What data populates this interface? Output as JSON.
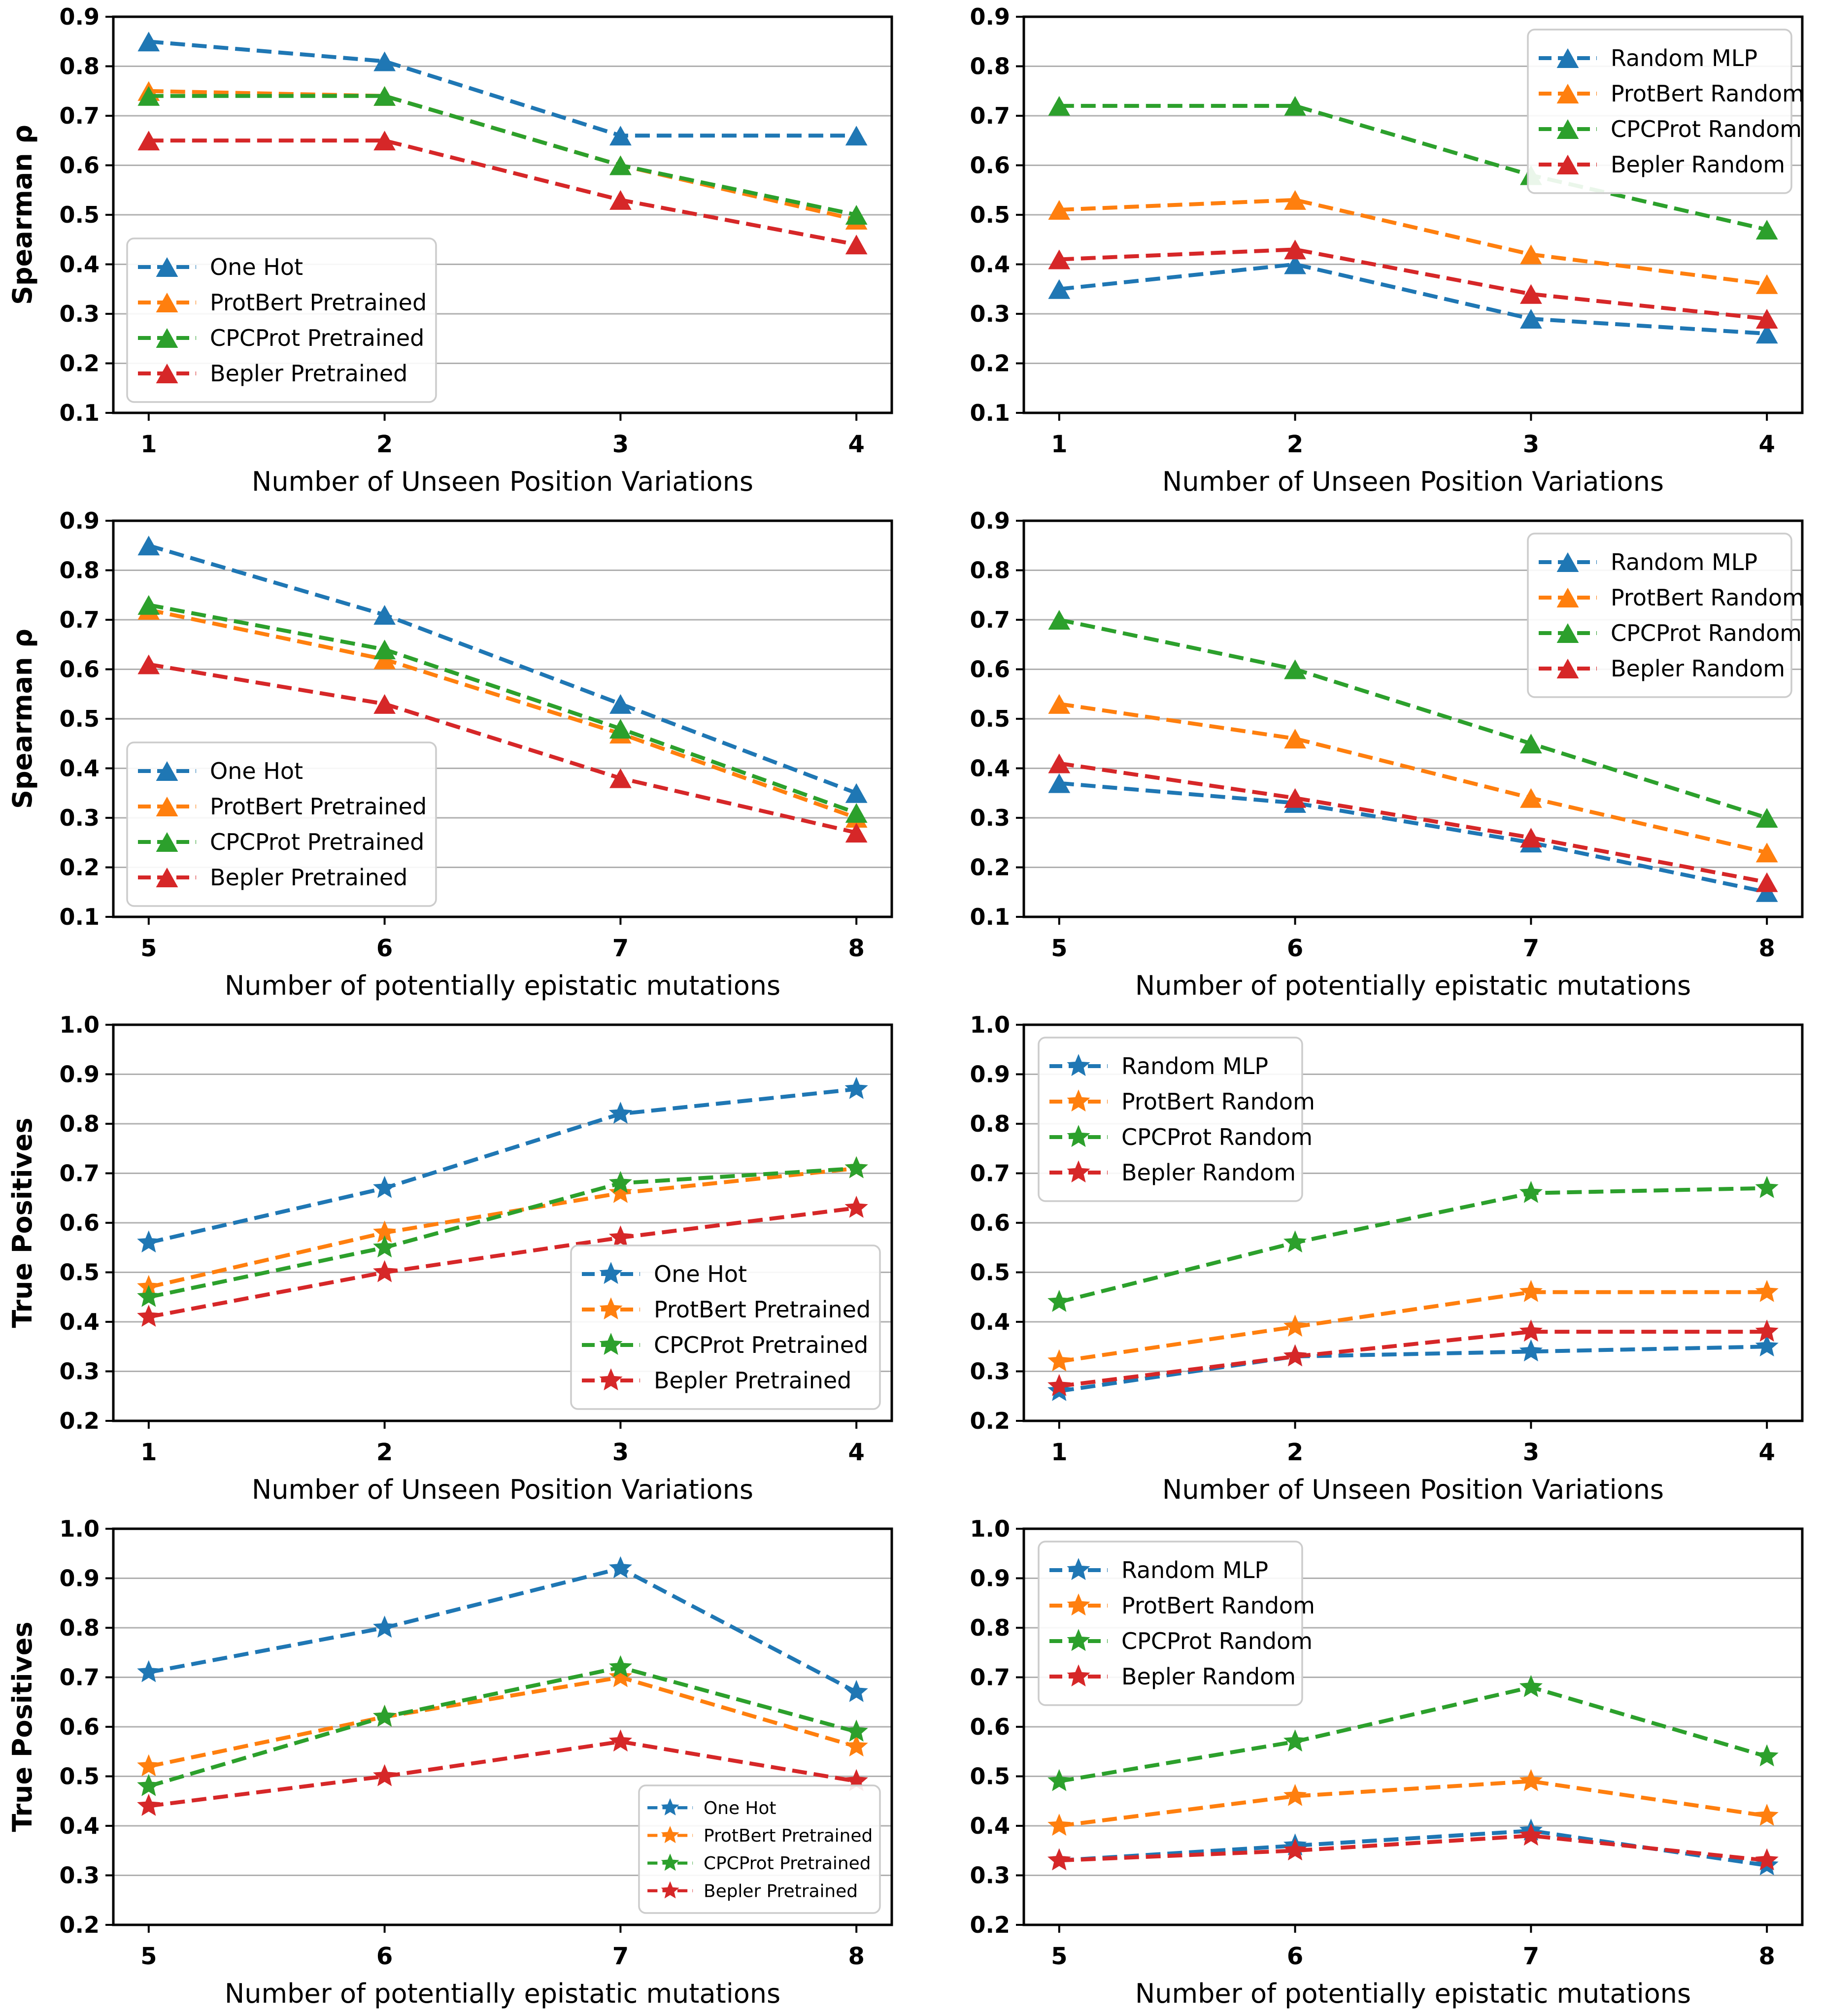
{
  "figure": {
    "layout": "4x2 grid of line charts",
    "colors": {
      "blue": "#1f77b4",
      "orange": "#ff7f0e",
      "green": "#2ca02c",
      "red": "#d62728",
      "grid": "#b0b0b0",
      "spine": "#000000",
      "legend_border": "#cccccc"
    }
  },
  "chart_data": [
    {
      "id": "spearman-unseen-pretrained",
      "type": "line",
      "xlabel": "Number of Unseen Position Variations",
      "ylabel": "Spearman ρ",
      "x": [
        1,
        2,
        3,
        4
      ],
      "ylim": [
        0.1,
        0.9
      ],
      "yticks": [
        0.1,
        0.2,
        0.3,
        0.4,
        0.5,
        0.6,
        0.7,
        0.8,
        0.9
      ],
      "grid": "horizontal",
      "marker": "triangle",
      "legend": {
        "position": "lower-left",
        "scale": 1.0
      },
      "series": [
        {
          "name": "One Hot",
          "color": "#1f77b4",
          "values": [
            0.85,
            0.81,
            0.66,
            0.66
          ]
        },
        {
          "name": "ProtBert Pretrained",
          "color": "#ff7f0e",
          "values": [
            0.75,
            0.74,
            0.6,
            0.49
          ]
        },
        {
          "name": "CPCProt Pretrained",
          "color": "#2ca02c",
          "values": [
            0.74,
            0.74,
            0.6,
            0.5
          ]
        },
        {
          "name": "Bepler Pretrained",
          "color": "#d62728",
          "values": [
            0.65,
            0.65,
            0.53,
            0.44
          ]
        }
      ]
    },
    {
      "id": "spearman-unseen-random",
      "type": "line",
      "xlabel": "Number of Unseen Position Variations",
      "ylabel": "",
      "x": [
        1,
        2,
        3,
        4
      ],
      "ylim": [
        0.1,
        0.9
      ],
      "yticks": [
        0.1,
        0.2,
        0.3,
        0.4,
        0.5,
        0.6,
        0.7,
        0.8,
        0.9
      ],
      "grid": "horizontal",
      "marker": "triangle",
      "legend": {
        "position": "upper-right",
        "scale": 1.0
      },
      "series": [
        {
          "name": "Random MLP",
          "color": "#1f77b4",
          "values": [
            0.35,
            0.4,
            0.29,
            0.26
          ]
        },
        {
          "name": "ProtBert Random",
          "color": "#ff7f0e",
          "values": [
            0.51,
            0.53,
            0.42,
            0.36
          ]
        },
        {
          "name": "CPCProt Random",
          "color": "#2ca02c",
          "values": [
            0.72,
            0.72,
            0.58,
            0.47
          ]
        },
        {
          "name": "Bepler Random",
          "color": "#d62728",
          "values": [
            0.41,
            0.43,
            0.34,
            0.29
          ]
        }
      ]
    },
    {
      "id": "spearman-epistatic-pretrained",
      "type": "line",
      "xlabel": "Number of potentially epistatic mutations",
      "ylabel": "Spearman ρ",
      "x": [
        5,
        6,
        7,
        8
      ],
      "ylim": [
        0.1,
        0.9
      ],
      "yticks": [
        0.1,
        0.2,
        0.3,
        0.4,
        0.5,
        0.6,
        0.7,
        0.8,
        0.9
      ],
      "grid": "horizontal",
      "marker": "triangle",
      "legend": {
        "position": "lower-left",
        "scale": 1.0
      },
      "series": [
        {
          "name": "One Hot",
          "color": "#1f77b4",
          "values": [
            0.85,
            0.71,
            0.53,
            0.35
          ]
        },
        {
          "name": "ProtBert Pretrained",
          "color": "#ff7f0e",
          "values": [
            0.72,
            0.62,
            0.47,
            0.3
          ]
        },
        {
          "name": "CPCProt Pretrained",
          "color": "#2ca02c",
          "values": [
            0.73,
            0.64,
            0.48,
            0.31
          ]
        },
        {
          "name": "Bepler Pretrained",
          "color": "#d62728",
          "values": [
            0.61,
            0.53,
            0.38,
            0.27
          ]
        }
      ]
    },
    {
      "id": "spearman-epistatic-random",
      "type": "line",
      "xlabel": "Number of potentially epistatic mutations",
      "ylabel": "",
      "x": [
        5,
        6,
        7,
        8
      ],
      "ylim": [
        0.1,
        0.9
      ],
      "yticks": [
        0.1,
        0.2,
        0.3,
        0.4,
        0.5,
        0.6,
        0.7,
        0.8,
        0.9
      ],
      "grid": "horizontal",
      "marker": "triangle",
      "legend": {
        "position": "upper-right",
        "scale": 1.0
      },
      "series": [
        {
          "name": "Random MLP",
          "color": "#1f77b4",
          "values": [
            0.37,
            0.33,
            0.25,
            0.15
          ]
        },
        {
          "name": "ProtBert Random",
          "color": "#ff7f0e",
          "values": [
            0.53,
            0.46,
            0.34,
            0.23
          ]
        },
        {
          "name": "CPCProt Random",
          "color": "#2ca02c",
          "values": [
            0.7,
            0.6,
            0.45,
            0.3
          ]
        },
        {
          "name": "Bepler Random",
          "color": "#d62728",
          "values": [
            0.41,
            0.34,
            0.26,
            0.17
          ]
        }
      ]
    },
    {
      "id": "truepos-unseen-pretrained",
      "type": "line",
      "xlabel": "Number of Unseen Position Variations",
      "ylabel": "True Positives",
      "x": [
        1,
        2,
        3,
        4
      ],
      "ylim": [
        0.2,
        1.0
      ],
      "yticks": [
        0.2,
        0.3,
        0.4,
        0.5,
        0.6,
        0.7,
        0.8,
        0.9,
        1.0
      ],
      "grid": "horizontal",
      "marker": "star",
      "legend": {
        "position": "lower-right",
        "scale": 1.0
      },
      "series": [
        {
          "name": "One Hot",
          "color": "#1f77b4",
          "values": [
            0.56,
            0.67,
            0.82,
            0.87
          ]
        },
        {
          "name": "ProtBert Pretrained",
          "color": "#ff7f0e",
          "values": [
            0.47,
            0.58,
            0.66,
            0.71
          ]
        },
        {
          "name": "CPCProt Pretrained",
          "color": "#2ca02c",
          "values": [
            0.45,
            0.55,
            0.68,
            0.71
          ]
        },
        {
          "name": "Bepler Pretrained",
          "color": "#d62728",
          "values": [
            0.41,
            0.5,
            0.57,
            0.63
          ]
        }
      ]
    },
    {
      "id": "truepos-unseen-random",
      "type": "line",
      "xlabel": "Number of Unseen Position Variations",
      "ylabel": "",
      "x": [
        1,
        2,
        3,
        4
      ],
      "ylim": [
        0.2,
        1.0
      ],
      "yticks": [
        0.2,
        0.3,
        0.4,
        0.5,
        0.6,
        0.7,
        0.8,
        0.9,
        1.0
      ],
      "grid": "horizontal",
      "marker": "star",
      "legend": {
        "position": "upper-left",
        "scale": 1.0
      },
      "series": [
        {
          "name": "Random MLP",
          "color": "#1f77b4",
          "values": [
            0.26,
            0.33,
            0.34,
            0.35
          ]
        },
        {
          "name": "ProtBert Random",
          "color": "#ff7f0e",
          "values": [
            0.32,
            0.39,
            0.46,
            0.46
          ]
        },
        {
          "name": "CPCProt Random",
          "color": "#2ca02c",
          "values": [
            0.44,
            0.56,
            0.66,
            0.67
          ]
        },
        {
          "name": "Bepler Random",
          "color": "#d62728",
          "values": [
            0.27,
            0.33,
            0.38,
            0.38
          ]
        }
      ]
    },
    {
      "id": "truepos-epistatic-pretrained",
      "type": "line",
      "xlabel": "Number of potentially epistatic mutations",
      "ylabel": "True Positives",
      "x": [
        5,
        6,
        7,
        8
      ],
      "ylim": [
        0.2,
        1.0
      ],
      "yticks": [
        0.2,
        0.3,
        0.4,
        0.5,
        0.6,
        0.7,
        0.8,
        0.9,
        1.0
      ],
      "grid": "horizontal",
      "marker": "star",
      "legend": {
        "position": "lower-right",
        "scale": 0.78
      },
      "series": [
        {
          "name": "One Hot",
          "color": "#1f77b4",
          "values": [
            0.71,
            0.8,
            0.92,
            0.67
          ]
        },
        {
          "name": "ProtBert Pretrained",
          "color": "#ff7f0e",
          "values": [
            0.52,
            0.62,
            0.7,
            0.56
          ]
        },
        {
          "name": "CPCProt Pretrained",
          "color": "#2ca02c",
          "values": [
            0.48,
            0.62,
            0.72,
            0.59
          ]
        },
        {
          "name": "Bepler Pretrained",
          "color": "#d62728",
          "values": [
            0.44,
            0.5,
            0.57,
            0.49
          ]
        }
      ]
    },
    {
      "id": "truepos-epistatic-random",
      "type": "line",
      "xlabel": "Number of potentially epistatic mutations",
      "ylabel": "",
      "x": [
        5,
        6,
        7,
        8
      ],
      "ylim": [
        0.2,
        1.0
      ],
      "yticks": [
        0.2,
        0.3,
        0.4,
        0.5,
        0.6,
        0.7,
        0.8,
        0.9,
        1.0
      ],
      "grid": "horizontal",
      "marker": "star",
      "legend": {
        "position": "upper-left",
        "scale": 1.0
      },
      "series": [
        {
          "name": "Random MLP",
          "color": "#1f77b4",
          "values": [
            0.33,
            0.36,
            0.39,
            0.32
          ]
        },
        {
          "name": "ProtBert Random",
          "color": "#ff7f0e",
          "values": [
            0.4,
            0.46,
            0.49,
            0.42
          ]
        },
        {
          "name": "CPCProt Random",
          "color": "#2ca02c",
          "values": [
            0.49,
            0.57,
            0.68,
            0.54
          ]
        },
        {
          "name": "Bepler Random",
          "color": "#d62728",
          "values": [
            0.33,
            0.35,
            0.38,
            0.33
          ]
        }
      ]
    }
  ]
}
